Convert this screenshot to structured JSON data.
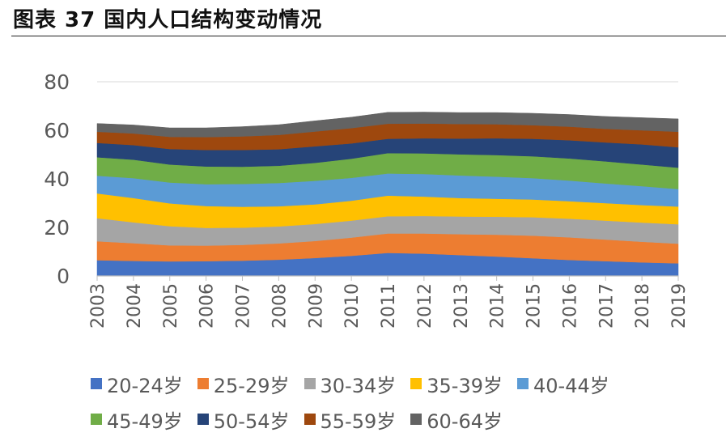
{
  "header": {
    "title": "图表 37 国内人口结构变动情况"
  },
  "chart_data": {
    "type": "area",
    "stacked": true,
    "x": [
      "2003",
      "2004",
      "2005",
      "2006",
      "2007",
      "2008",
      "2009",
      "2010",
      "2011",
      "2012",
      "2013",
      "2014",
      "2015",
      "2016",
      "2017",
      "2018",
      "2019"
    ],
    "yticks": [
      0,
      20,
      40,
      60,
      80
    ],
    "ylim": [
      0,
      80
    ],
    "grid": true,
    "legend_position": "bottom",
    "series": [
      {
        "name": "20-24岁",
        "color": "#4472C4",
        "values": [
          6.5,
          6.2,
          6.0,
          6.1,
          6.3,
          6.7,
          7.4,
          8.3,
          9.5,
          9.2,
          8.6,
          8.0,
          7.3,
          6.6,
          6.1,
          5.6,
          5.2
        ]
      },
      {
        "name": "25-29岁",
        "color": "#ED7D31",
        "values": [
          7.8,
          7.3,
          6.6,
          6.4,
          6.5,
          6.7,
          7.0,
          7.5,
          8.0,
          8.3,
          8.6,
          9.0,
          9.3,
          9.3,
          8.9,
          8.5,
          8.1
        ]
      },
      {
        "name": "30-34岁",
        "color": "#A5A5A5",
        "values": [
          9.5,
          8.6,
          7.9,
          7.3,
          7.1,
          7.0,
          7.0,
          7.0,
          7.1,
          7.2,
          7.3,
          7.4,
          7.6,
          7.7,
          7.8,
          7.9,
          8.0
        ]
      },
      {
        "name": "35-39岁",
        "color": "#FFC000",
        "values": [
          10.2,
          10.0,
          9.4,
          9.0,
          8.6,
          8.3,
          8.1,
          8.2,
          8.5,
          8.0,
          7.6,
          7.4,
          7.3,
          7.2,
          7.2,
          7.2,
          7.3
        ]
      },
      {
        "name": "40-44岁",
        "color": "#5B9BD5",
        "values": [
          7.3,
          8.2,
          8.6,
          9.0,
          9.4,
          9.6,
          9.7,
          9.4,
          9.1,
          9.3,
          9.3,
          9.1,
          8.8,
          8.5,
          8.1,
          7.8,
          7.2
        ]
      },
      {
        "name": "45-49岁",
        "color": "#70AD47",
        "values": [
          7.6,
          7.6,
          7.4,
          7.3,
          7.1,
          7.1,
          7.4,
          7.9,
          8.4,
          8.5,
          8.7,
          8.9,
          9.0,
          9.1,
          9.1,
          8.9,
          8.8
        ]
      },
      {
        "name": "50-54岁",
        "color": "#264478",
        "values": [
          5.9,
          6.0,
          6.4,
          6.8,
          6.9,
          6.8,
          6.8,
          6.3,
          5.9,
          6.2,
          6.5,
          6.9,
          7.2,
          7.5,
          7.8,
          8.3,
          8.4
        ]
      },
      {
        "name": "55-59岁",
        "color": "#9E480E",
        "values": [
          4.6,
          4.8,
          5.0,
          5.3,
          5.6,
          5.9,
          6.1,
          6.3,
          6.2,
          6.1,
          6.0,
          5.8,
          5.6,
          5.6,
          5.6,
          5.8,
          6.4
        ]
      },
      {
        "name": "60-64岁",
        "color": "#636363",
        "values": [
          3.4,
          3.5,
          3.7,
          3.8,
          4.0,
          4.2,
          4.4,
          4.5,
          4.7,
          4.7,
          4.7,
          4.8,
          4.9,
          5.0,
          5.1,
          5.2,
          5.3
        ]
      }
    ]
  }
}
